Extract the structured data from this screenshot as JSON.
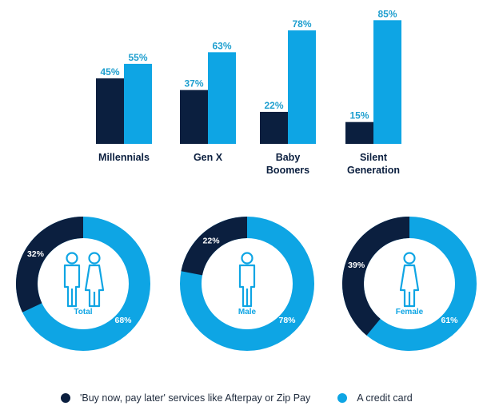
{
  "colors": {
    "dark": "#0b1f3f",
    "blue": "#0ea5e4",
    "text": "#0b1f3f"
  },
  "legend": {
    "items": [
      {
        "label": "'Buy now, pay later' services like Afterpay or Zip Pay",
        "color": "#0b1f3f"
      },
      {
        "label": "A credit card",
        "color": "#0ea5e4"
      }
    ]
  },
  "chart_data": [
    {
      "type": "bar",
      "categories": [
        [
          "Millennials"
        ],
        [
          "Gen X"
        ],
        [
          "Baby",
          "Boomers"
        ],
        [
          "Silent",
          "Generation"
        ]
      ],
      "series": [
        {
          "name": "'Buy now, pay later' services like Afterpay or Zip Pay",
          "values": [
            45,
            37,
            22,
            15
          ],
          "labels": [
            "45%",
            "37%",
            "22%",
            "15%"
          ]
        },
        {
          "name": "A credit card",
          "values": [
            55,
            63,
            78,
            85
          ],
          "labels": [
            "55%",
            "63%",
            "78%",
            "85%"
          ]
        }
      ],
      "ylim": [
        0,
        100
      ],
      "grid": false
    },
    {
      "type": "pie",
      "donuts": [
        {
          "center_label": "Total",
          "icon": "male-female-icon",
          "slices": [
            {
              "value": 32,
              "label": "32%"
            },
            {
              "value": 68,
              "label": "68%"
            }
          ]
        },
        {
          "center_label": "Male",
          "icon": "male-icon",
          "slices": [
            {
              "value": 22,
              "label": "22%"
            },
            {
              "value": 78,
              "label": "78%"
            }
          ]
        },
        {
          "center_label": "Female",
          "icon": "female-icon",
          "slices": [
            {
              "value": 39,
              "label": "39%"
            },
            {
              "value": 61,
              "label": "61%"
            }
          ]
        }
      ]
    }
  ]
}
